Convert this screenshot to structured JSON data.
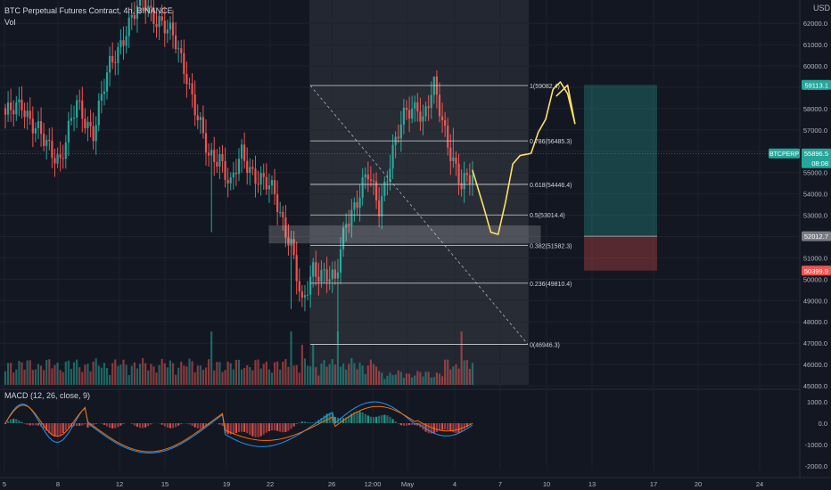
{
  "header": {
    "title": "BTC Perpetual Futures Contract, 4h, BINANCE",
    "sub": "Vol"
  },
  "macd": {
    "label": "MACD (12, 26, close, 9)"
  },
  "currency": "USD",
  "colors": {
    "bg": "#131722",
    "up": "#26a69a",
    "down": "#ef5350",
    "axis_text": "#b2b5be",
    "grid": "#1e222d",
    "fib_line": "#d1d4dc",
    "projection": "#ffe066",
    "macd_line": "#2196f3",
    "signal_line": "#ff6d00"
  },
  "chart_data": [
    {
      "type": "candlestick",
      "title": "BTC Perpetual Futures Contract, 4h, BINANCE",
      "ylabel": "USD",
      "ylim": [
        44800,
        63400
      ],
      "price_ticks": [
        45000,
        46000,
        47000,
        48000,
        49000,
        50000,
        51000,
        52000,
        53000,
        54000,
        55000,
        56000,
        57000,
        58000,
        59000,
        60000,
        61000,
        62000
      ],
      "x_ticks": [
        "5",
        "8",
        "12",
        "15",
        "19",
        "22",
        "26",
        "12:00",
        "May",
        "4",
        "7",
        "10",
        "13",
        "17",
        "20",
        "24"
      ],
      "anchor_points": [
        [
          0,
          57500
        ],
        [
          6,
          58400
        ],
        [
          10,
          57200
        ],
        [
          14,
          56400
        ],
        [
          20,
          55700
        ],
        [
          26,
          58100
        ],
        [
          32,
          57000
        ],
        [
          38,
          59900
        ],
        [
          44,
          61800
        ],
        [
          50,
          63000
        ],
        [
          56,
          62200
        ],
        [
          62,
          61000
        ],
        [
          66,
          59700
        ],
        [
          70,
          57500
        ],
        [
          74,
          55600
        ],
        [
          78,
          55900
        ],
        [
          82,
          54300
        ],
        [
          86,
          55800
        ],
        [
          92,
          54800
        ],
        [
          98,
          53900
        ],
        [
          104,
          51700
        ],
        [
          108,
          48500
        ],
        [
          112,
          50600
        ],
        [
          116,
          50300
        ],
        [
          120,
          49700
        ],
        [
          124,
          52900
        ],
        [
          128,
          53700
        ],
        [
          132,
          54800
        ],
        [
          136,
          53500
        ],
        [
          140,
          55500
        ],
        [
          146,
          57900
        ],
        [
          150,
          58300
        ],
        [
          152,
          57400
        ],
        [
          156,
          58900
        ],
        [
          158,
          58000
        ],
        [
          162,
          56100
        ],
        [
          166,
          54200
        ],
        [
          170,
          54900
        ]
      ],
      "fib_levels": [
        {
          "ratio": 1,
          "price": 59082.4,
          "label": "1(59082.4)"
        },
        {
          "ratio": 0.786,
          "price": 56485.3,
          "label": "0.786(56485.3)"
        },
        {
          "ratio": 0.618,
          "price": 54446.4,
          "label": "0.618(54446.4)"
        },
        {
          "ratio": 0.5,
          "price": 53014.4,
          "label": "0.5(53014.4)"
        },
        {
          "ratio": 0.382,
          "price": 51582.3,
          "label": "0.382(51582.3)"
        },
        {
          "ratio": 0.236,
          "price": 49810.4,
          "label": "0.236(49810.4)"
        },
        {
          "ratio": 0,
          "price": 46946.3,
          "label": "0(46946.3)"
        }
      ],
      "price_tags": [
        {
          "price": 59113.1,
          "text": "59113.1",
          "kind": "target"
        },
        {
          "price": 55896.5,
          "text": "55896.5",
          "sub": "08:08",
          "ticker": "BTCPERP",
          "kind": "last"
        },
        {
          "price": 52012.7,
          "text": "52012.7",
          "kind": "entry"
        },
        {
          "price": 50399.9,
          "text": "50399.9",
          "kind": "stop"
        }
      ],
      "position": {
        "target": 59113.1,
        "entry": 52012.7,
        "stop": 50399.9
      },
      "zone": {
        "low": 51700,
        "high": 52500
      },
      "projection": [
        [
          0,
          55100
        ],
        [
          6,
          53400
        ],
        [
          10,
          52200
        ],
        [
          14,
          52100
        ],
        [
          18,
          53600
        ],
        [
          22,
          55400
        ],
        [
          26,
          55800
        ],
        [
          32,
          55900
        ],
        [
          36,
          56900
        ],
        [
          40,
          57500
        ],
        [
          44,
          58900
        ],
        [
          48,
          59250
        ],
        [
          52,
          58700
        ],
        [
          56,
          57300
        ],
        [
          52,
          59100
        ],
        [
          46,
          58600
        ]
      ]
    },
    {
      "type": "macd",
      "title": "MACD (12, 26, close, 9)",
      "ylim": [
        -2200,
        1500
      ],
      "y_ticks": [
        1000,
        0,
        -1000,
        -2000
      ]
    }
  ]
}
